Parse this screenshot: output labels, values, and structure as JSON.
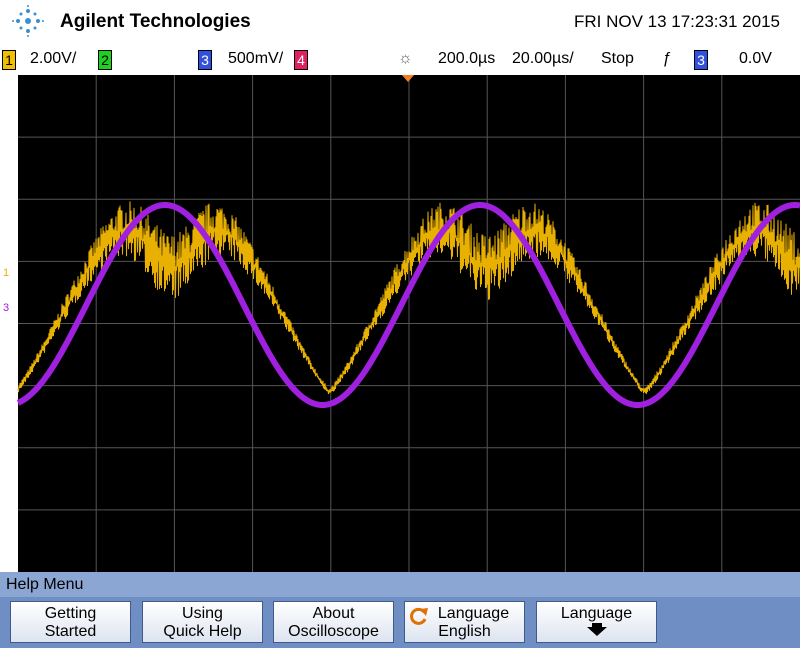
{
  "header": {
    "brand": "Agilent Technologies",
    "datetime": "FRI NOV 13 17:23:31 2015"
  },
  "status": {
    "ch1": {
      "label": "1",
      "scale": "2.00V/"
    },
    "ch2": {
      "label": "2"
    },
    "ch3": {
      "label": "3",
      "scale": "500mV/"
    },
    "ch4": {
      "label": "4"
    },
    "delay": "200.0µs",
    "timebase": "20.00µs/",
    "run_state": "Stop",
    "trigger_source": "3",
    "trigger_level": "0.0V"
  },
  "markers": {
    "ch1": "1",
    "ch3": "3"
  },
  "menu": {
    "title": "Help Menu",
    "softkeys": [
      {
        "line1": "Getting",
        "line2": "Started"
      },
      {
        "line1": "Using",
        "line2": "Quick Help"
      },
      {
        "line1": "About",
        "line2": "Oscilloscope"
      },
      {
        "line1": "Language",
        "line2": "English"
      },
      {
        "line1": "Language"
      }
    ]
  }
}
